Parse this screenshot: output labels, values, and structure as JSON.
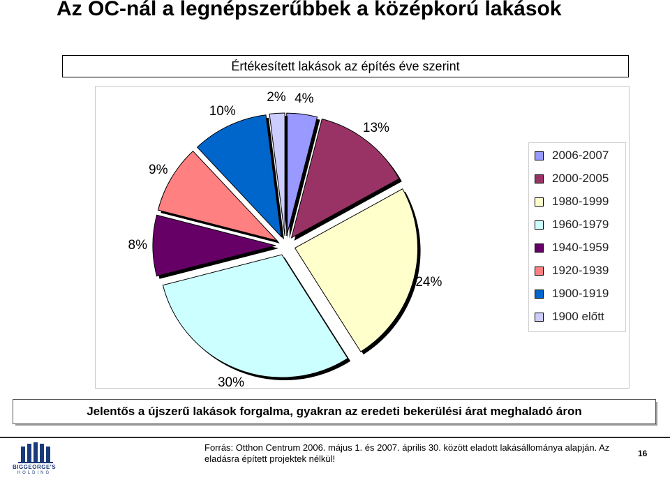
{
  "slide": {
    "title": "Az OC-nál a legnépszerűbbek a középkorú lakások",
    "note": "Jelentős a újszerű lakások forgalma, gyakran az eredeti bekerülési árat meghaladó áron",
    "source": "Forrás: Otthon Centrum 2006. május 1. és 2007. április 30. között eladott lakásállománya alapján. Az eladásra épített projektek nélkül!",
    "page_number": "16",
    "logo_text": "BIGGEORGE'S",
    "logo_subtext": "HOLDING"
  },
  "chart_data": {
    "type": "pie",
    "title": "Értékesített lakások az építés éve szerint",
    "categories": [
      "2006-2007",
      "2000-2005",
      "1980-1999",
      "1960-1979",
      "1940-1959",
      "1920-1939",
      "1900-1919",
      "1900 előtt"
    ],
    "values": [
      4,
      13,
      24,
      30,
      8,
      9,
      10,
      2
    ],
    "labels": [
      "4%",
      "13%",
      "24%",
      "30%",
      "8%",
      "9%",
      "10%",
      "2%"
    ],
    "colors": [
      "#9999ff",
      "#993366",
      "#ffffcc",
      "#ccffff",
      "#660066",
      "#ff8080",
      "#0066cc",
      "#ccccff"
    ],
    "exploded": true,
    "legend_position": "right"
  }
}
